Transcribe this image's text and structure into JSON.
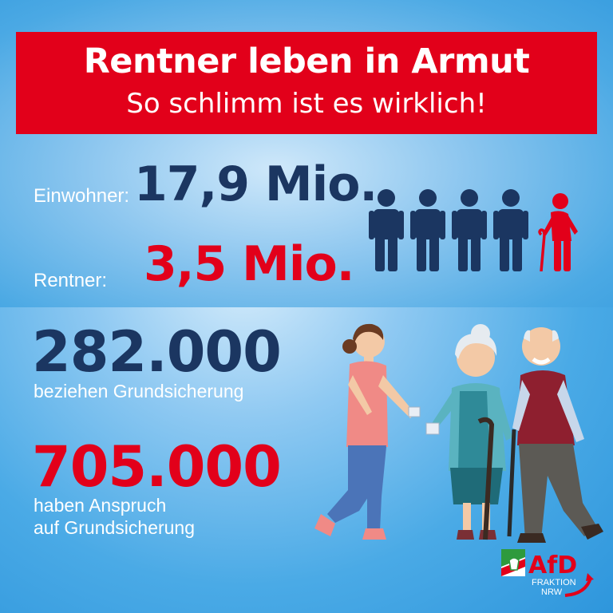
{
  "header": {
    "title": "Rentner leben in Armut",
    "subtitle": "So schlimm ist es wirklich!"
  },
  "stats": {
    "residents_label": "Einwohner:",
    "residents_value": "17,9 Mio.",
    "pensioners_label": "Rentner:",
    "pensioners_value": "3,5 Mio.",
    "receive_value": "282.000",
    "receive_label": "beziehen Grundsicherung",
    "entitled_value": "705.000",
    "entitled_label_line1": "haben Anspruch",
    "entitled_label_line2": "auf Grundsicherung"
  },
  "people_icons": {
    "navy_count": 4,
    "red_count": 1,
    "navy_color": "#1b3661",
    "red_color": "#e2001a"
  },
  "logo": {
    "name": "AfD",
    "line1": "FRAKTION",
    "line2": "NRW"
  },
  "colors": {
    "accent_red": "#e2001a",
    "navy": "#1b3661",
    "background_blue": "#3b9fe0"
  }
}
